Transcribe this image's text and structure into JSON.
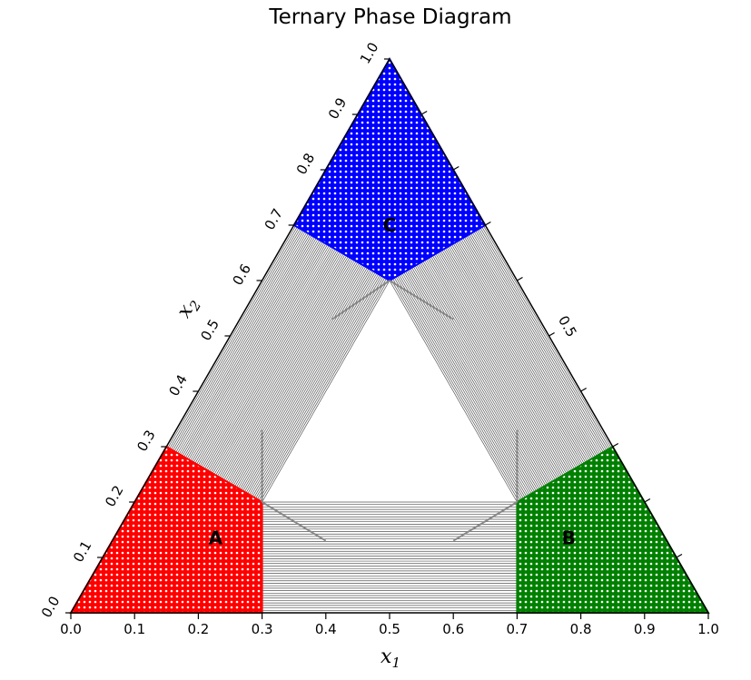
{
  "title": "Ternary Phase Diagram",
  "colors": {
    "region_a": "#ff0000",
    "region_b": "#008000",
    "region_c": "#0000ff",
    "tie_lines": "#555555",
    "guide_lines": "#888888",
    "frame": "#000000"
  },
  "regions": [
    {
      "key": "A",
      "label": "A",
      "color": "#ff0000",
      "label_pos": [
        0.227,
        0.135
      ],
      "vertices": [
        [
          0,
          0
        ],
        [
          0.3,
          0
        ],
        [
          0.3,
          0.2
        ],
        [
          0.15,
          0.3
        ]
      ]
    },
    {
      "key": "B",
      "label": "B",
      "color": "#008000",
      "label_pos": [
        0.781,
        0.135
      ],
      "vertices": [
        [
          0.7,
          0
        ],
        [
          1,
          0
        ],
        [
          0.85,
          0.3
        ],
        [
          0.7,
          0.2
        ]
      ]
    },
    {
      "key": "C",
      "label": "C",
      "color": "#0000ff",
      "label_pos": [
        0.5,
        0.7
      ],
      "vertices": [
        [
          0.35,
          0.7
        ],
        [
          0.5,
          1
        ],
        [
          0.65,
          0.7
        ],
        [
          0.5,
          0.6
        ]
      ]
    }
  ],
  "tie_line_bands": [
    {
      "from": [
        [
          0.3,
          0
        ],
        [
          0.3,
          0.2
        ]
      ],
      "to": [
        [
          0.7,
          0
        ],
        [
          0.7,
          0.2
        ]
      ],
      "count": 45
    },
    {
      "from": [
        [
          0.15,
          0.3
        ],
        [
          0.3,
          0.2
        ]
      ],
      "to": [
        [
          0.35,
          0.7
        ],
        [
          0.5,
          0.6
        ]
      ],
      "count": 60
    },
    {
      "from": [
        [
          0.85,
          0.3
        ],
        [
          0.7,
          0.2
        ]
      ],
      "to": [
        [
          0.65,
          0.7
        ],
        [
          0.5,
          0.6
        ]
      ],
      "count": 60
    }
  ],
  "guide_lines": [
    {
      "from": [
        0.3,
        0.2
      ],
      "to": [
        0.3,
        0.33
      ]
    },
    {
      "from": [
        0.3,
        0.2
      ],
      "to": [
        0.4,
        0.13
      ]
    },
    {
      "from": [
        0.7,
        0.2
      ],
      "to": [
        0.7,
        0.33
      ]
    },
    {
      "from": [
        0.7,
        0.2
      ],
      "to": [
        0.6,
        0.13
      ]
    },
    {
      "from": [
        0.5,
        0.6
      ],
      "to": [
        0.41,
        0.53
      ]
    },
    {
      "from": [
        0.5,
        0.6
      ],
      "to": [
        0.6,
        0.53
      ]
    }
  ],
  "axes": {
    "bottom": {
      "label": "x",
      "label_sub": "1",
      "ticks": [
        "0.0",
        "0.1",
        "0.2",
        "0.3",
        "0.4",
        "0.5",
        "0.6",
        "0.7",
        "0.8",
        "0.9",
        "1.0"
      ]
    },
    "left": {
      "label": "x",
      "label_sub": "2",
      "ticks": [
        "0.0",
        "0.1",
        "0.2",
        "0.3",
        "0.4",
        "0.5",
        "0.6",
        "0.7",
        "0.8",
        "0.9",
        "1.0"
      ]
    },
    "right": {
      "ticks": [
        {
          "value": 0.5,
          "label": "0.5"
        }
      ],
      "tick_count": 10
    }
  }
}
